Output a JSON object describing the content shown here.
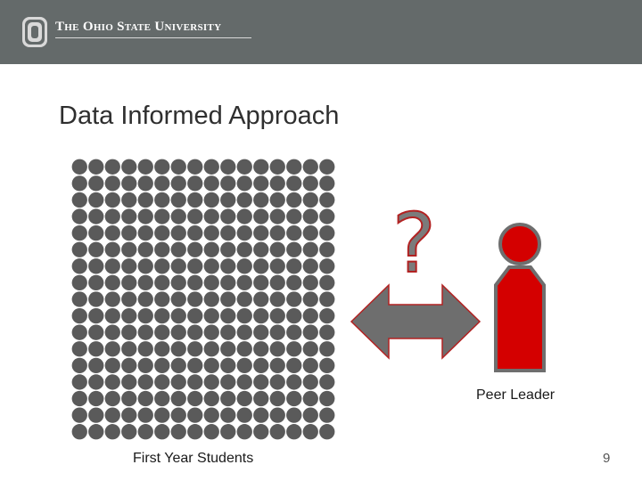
{
  "header": {
    "university_name": "The Ohio State University",
    "logo_icon": "block-o-logo-icon",
    "background_color": "#646a6a"
  },
  "slide": {
    "title": "Data Informed Approach",
    "page_number": "9"
  },
  "graphic": {
    "students_label": "First Year Students",
    "peer_leader_label": "Peer Leader",
    "question_mark": "?",
    "student_dot_rows": 17,
    "student_dot_columns": 16,
    "dot_color": "#5a5a5a",
    "arrow_color": "#6e6e6e",
    "accent_color": "#b22222",
    "peer_leader_color": "#d40000"
  }
}
